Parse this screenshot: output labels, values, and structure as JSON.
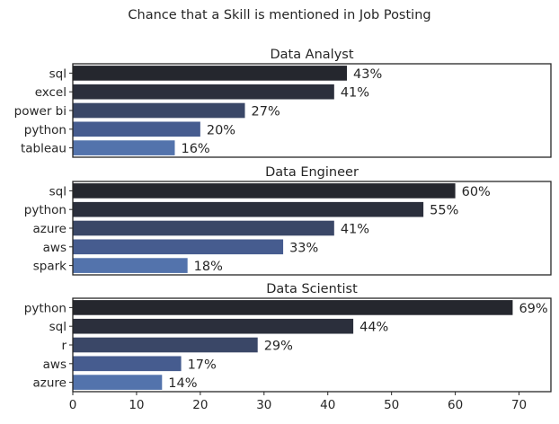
{
  "chart_data": {
    "type": "bar",
    "orientation": "horizontal",
    "title": "Chance that a Skill is mentioned in Job Posting",
    "xlim": [
      0,
      75
    ],
    "xticks": [
      "0",
      "10",
      "20",
      "30",
      "40",
      "50",
      "60",
      "70"
    ],
    "grid": false,
    "palette": [
      "#25272e",
      "#2b2f3c",
      "#3a4767",
      "#465c8f",
      "#5373ac"
    ],
    "value_label_suffix": "%",
    "panels": [
      {
        "title": "Data Analyst",
        "categories": [
          "sql",
          "excel",
          "power bi",
          "python",
          "tableau"
        ],
        "values": [
          43,
          41,
          27,
          20,
          16
        ]
      },
      {
        "title": "Data Engineer",
        "categories": [
          "sql",
          "python",
          "azure",
          "aws",
          "spark"
        ],
        "values": [
          60,
          55,
          41,
          33,
          18
        ]
      },
      {
        "title": "Data Scientist",
        "categories": [
          "python",
          "sql",
          "r",
          "aws",
          "azure"
        ],
        "values": [
          69,
          44,
          29,
          17,
          14
        ]
      }
    ]
  }
}
